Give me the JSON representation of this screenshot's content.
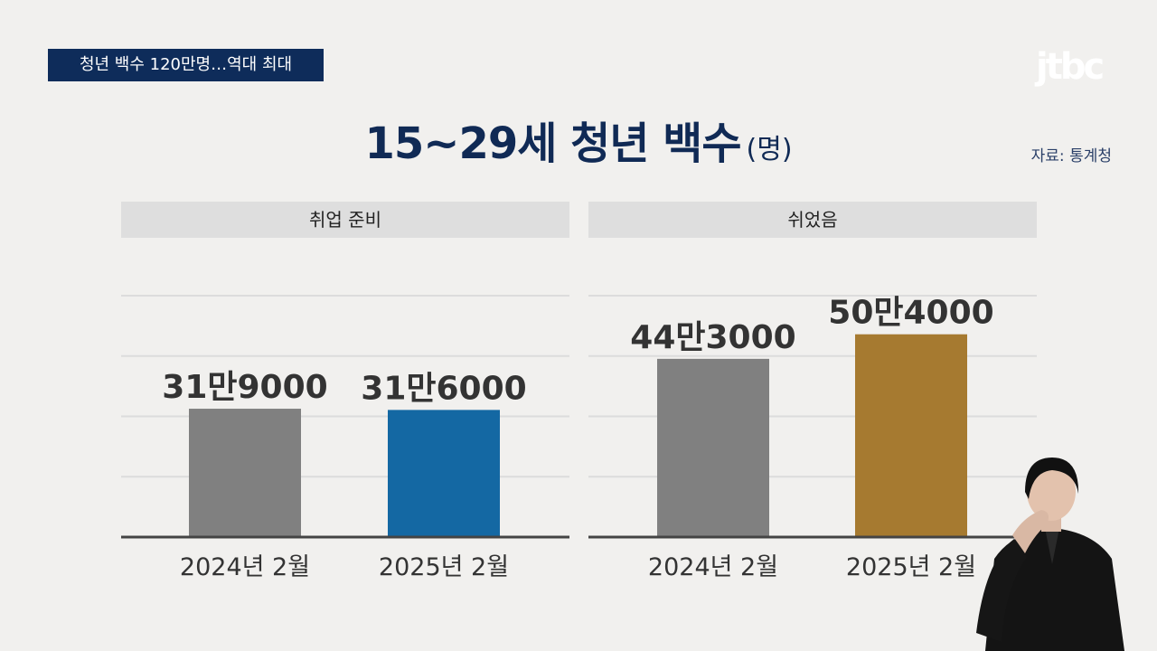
{
  "caption": "청년 백수 120만명…역대 최대",
  "logo": "jtbc",
  "title": "15~29세 청년 백수",
  "unit": "(명)",
  "source": "자료: 통계청",
  "colors": {
    "navy": "#0e2c5a",
    "gray_bar": "#808080",
    "blue_bar": "#1468a3",
    "gold_bar": "#a67a30"
  },
  "chart_data": [
    {
      "type": "bar",
      "title": "취업 준비",
      "categories": [
        "2024년 2월",
        "2025년 2월"
      ],
      "values": [
        319000,
        316000
      ],
      "data_labels": [
        "31만9000",
        "31만6000"
      ],
      "colors": [
        "#808080",
        "#1468a3"
      ],
      "ylim": [
        0,
        600000
      ],
      "grid": true
    },
    {
      "type": "bar",
      "title": "쉬었음",
      "categories": [
        "2024년 2월",
        "2025년 2월"
      ],
      "values": [
        443000,
        504000
      ],
      "data_labels": [
        "44만3000",
        "50만4000"
      ],
      "colors": [
        "#808080",
        "#a67a30"
      ],
      "ylim": [
        0,
        600000
      ],
      "grid": true
    }
  ]
}
